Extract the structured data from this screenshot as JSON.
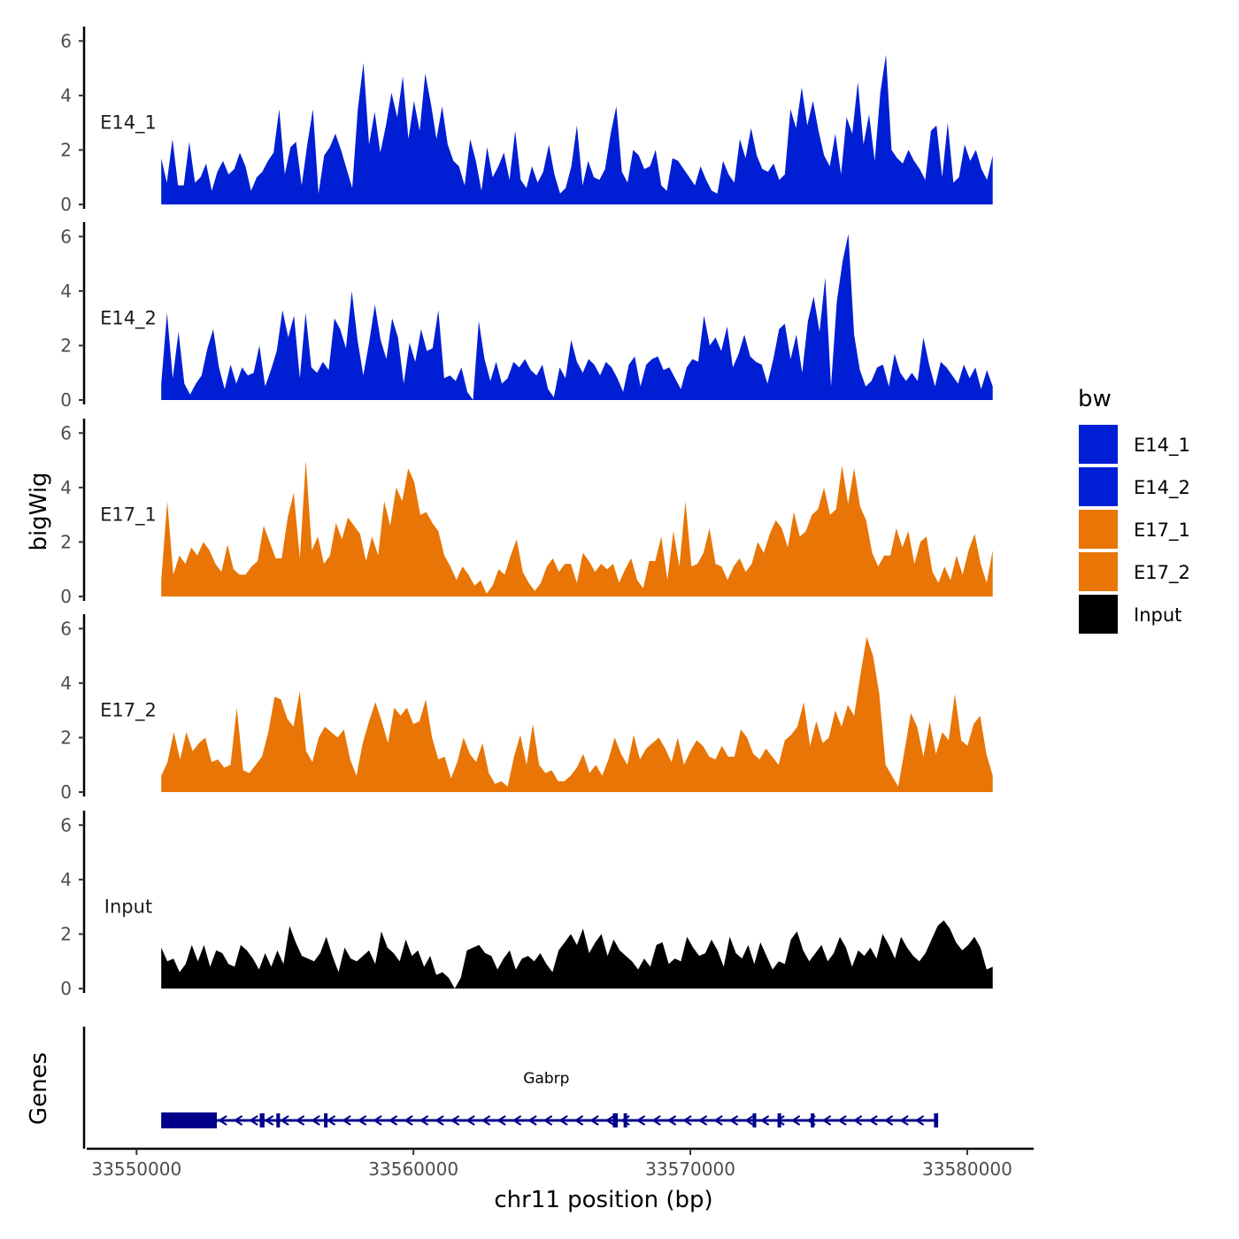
{
  "chart_data": {
    "type": "area",
    "title": "",
    "ylabel": "bigWig",
    "genes_label": "Genes",
    "xlabel": "chr11 position (bp)",
    "region_start": 33550890,
    "region_end": 33580920,
    "xlim": [
      33548200,
      33582400
    ],
    "x_ticks": [
      33550000,
      33560000,
      33570000,
      33580000
    ],
    "x_tick_labels": [
      "33550000",
      "33560000",
      "33570000",
      "33580000"
    ],
    "ylim": [
      0,
      6.4
    ],
    "y_ticks": [
      0,
      2,
      4,
      6
    ],
    "y_tick_labels": [
      "0",
      "2",
      "4",
      "6"
    ],
    "legend": {
      "title": "bw",
      "position": "right",
      "entries": [
        {
          "label": "E14_1",
          "color": "#001fd4"
        },
        {
          "label": "E14_2",
          "color": "#001fd4"
        },
        {
          "label": "E17_1",
          "color": "#e87505"
        },
        {
          "label": "E17_2",
          "color": "#e87505"
        },
        {
          "label": "Input",
          "color": "#000000"
        }
      ]
    },
    "series": [
      {
        "name": "E14_1",
        "color": "#001fd4",
        "values": [
          1.7,
          0.8,
          2.4,
          0.7,
          0.7,
          2.3,
          0.8,
          1.0,
          1.5,
          0.5,
          1.2,
          1.6,
          1.1,
          1.3,
          1.9,
          1.4,
          0.5,
          1.0,
          1.2,
          1.6,
          1.9,
          3.5,
          1.1,
          2.1,
          2.3,
          0.7,
          2.2,
          3.5,
          0.4,
          1.8,
          2.1,
          2.6,
          2.0,
          1.3,
          0.6,
          3.5,
          5.2,
          2.2,
          3.4,
          1.9,
          2.9,
          4.1,
          3.2,
          4.7,
          2.4,
          3.8,
          2.7,
          4.8,
          3.7,
          2.4,
          3.6,
          2.2,
          1.6,
          1.4,
          0.7,
          2.4,
          1.6,
          0.5,
          2.1,
          1.0,
          1.4,
          1.9,
          0.9,
          2.7,
          0.9,
          0.6,
          1.4,
          0.8,
          1.2,
          2.2,
          1.1,
          0.4,
          0.6,
          1.4,
          2.9,
          0.7,
          1.6,
          1.0,
          0.9,
          1.3,
          2.6,
          3.6,
          1.2,
          0.8,
          2.0,
          1.8,
          1.3,
          1.4,
          2.0,
          0.7,
          0.5,
          1.7,
          1.6,
          1.3,
          1.0,
          0.7,
          1.4,
          0.9,
          0.5,
          0.4,
          1.6,
          1.1,
          0.8,
          2.4,
          1.7,
          2.8,
          1.8,
          1.3,
          1.2,
          1.5,
          0.9,
          1.1,
          3.5,
          2.8,
          4.3,
          2.9,
          3.8,
          2.7,
          1.8,
          1.4,
          2.6,
          1.1,
          3.2,
          2.6,
          4.5,
          2.2,
          3.3,
          1.6,
          4.1,
          5.5,
          2.0,
          1.7,
          1.5,
          2.0,
          1.6,
          1.3,
          0.9,
          2.7,
          2.9,
          1.0,
          3.0,
          0.8,
          1.0,
          2.2,
          1.6,
          2.0,
          1.3,
          0.9,
          1.8
        ]
      },
      {
        "name": "E14_2",
        "color": "#001fd4",
        "values": [
          0.6,
          3.2,
          0.8,
          2.5,
          0.6,
          0.2,
          0.6,
          0.9,
          1.9,
          2.6,
          1.2,
          0.4,
          1.3,
          0.6,
          1.2,
          0.9,
          1.0,
          2.0,
          0.5,
          1.1,
          1.8,
          3.3,
          2.3,
          3.1,
          0.8,
          3.2,
          1.2,
          1.0,
          1.4,
          1.1,
          3.0,
          2.6,
          1.9,
          4.0,
          2.2,
          0.9,
          2.1,
          3.5,
          2.2,
          1.5,
          3.0,
          2.3,
          0.6,
          2.1,
          1.4,
          2.6,
          1.8,
          1.9,
          3.3,
          0.8,
          0.9,
          0.7,
          1.2,
          0.3,
          0.0,
          2.9,
          1.5,
          0.7,
          1.4,
          0.6,
          0.8,
          1.4,
          1.2,
          1.5,
          1.1,
          0.9,
          1.3,
          0.4,
          0.1,
          1.2,
          0.8,
          2.2,
          1.4,
          1.0,
          1.5,
          1.3,
          0.9,
          1.4,
          1.2,
          0.8,
          0.3,
          1.3,
          1.6,
          0.5,
          1.3,
          1.5,
          1.6,
          1.1,
          1.2,
          0.8,
          0.4,
          1.2,
          1.5,
          1.4,
          3.1,
          2.0,
          2.3,
          1.8,
          2.7,
          1.2,
          1.7,
          2.4,
          1.6,
          1.4,
          1.3,
          0.6,
          1.5,
          2.6,
          2.8,
          1.5,
          2.4,
          1.0,
          2.9,
          3.8,
          2.5,
          4.5,
          0.5,
          3.6,
          5.1,
          6.1,
          2.4,
          1.1,
          0.5,
          0.7,
          1.2,
          1.3,
          0.5,
          1.7,
          1.0,
          0.7,
          1.0,
          0.7,
          2.3,
          1.3,
          0.5,
          1.4,
          1.2,
          0.9,
          0.6,
          1.3,
          0.8,
          1.2,
          0.4,
          1.1,
          0.5
        ]
      },
      {
        "name": "E17_1",
        "color": "#e87505",
        "values": [
          0.6,
          3.5,
          0.8,
          1.5,
          1.2,
          1.8,
          1.5,
          2.0,
          1.7,
          1.2,
          0.9,
          1.9,
          1.0,
          0.8,
          0.8,
          1.1,
          1.3,
          2.6,
          2.0,
          1.4,
          1.4,
          2.9,
          3.8,
          1.4,
          5.0,
          1.7,
          2.2,
          1.2,
          1.5,
          2.7,
          2.1,
          2.9,
          2.6,
          2.3,
          1.3,
          2.2,
          1.5,
          3.5,
          2.6,
          4.0,
          3.5,
          4.7,
          4.2,
          3.0,
          3.1,
          2.7,
          2.4,
          1.5,
          1.1,
          0.6,
          1.1,
          0.8,
          0.4,
          0.6,
          0.1,
          0.4,
          1.0,
          0.8,
          1.5,
          2.1,
          0.9,
          0.5,
          0.2,
          0.5,
          1.1,
          1.4,
          0.9,
          1.2,
          1.2,
          0.5,
          1.6,
          1.3,
          0.9,
          1.2,
          1.0,
          1.2,
          0.5,
          1.0,
          1.4,
          0.6,
          0.3,
          1.3,
          1.3,
          2.2,
          0.6,
          2.4,
          1.1,
          3.5,
          1.1,
          1.2,
          1.6,
          2.5,
          1.2,
          1.1,
          0.6,
          1.1,
          1.4,
          0.9,
          1.2,
          2.0,
          1.6,
          2.3,
          2.8,
          2.5,
          1.8,
          3.1,
          2.2,
          2.4,
          3.0,
          3.2,
          4.0,
          3.0,
          3.2,
          4.8,
          3.4,
          4.7,
          3.3,
          2.8,
          1.6,
          1.1,
          1.5,
          1.5,
          2.5,
          1.8,
          2.4,
          1.2,
          2.0,
          2.2,
          0.9,
          0.5,
          1.1,
          0.6,
          1.5,
          0.8,
          1.7,
          2.3,
          1.2,
          0.5,
          1.7
        ]
      },
      {
        "name": "E17_2",
        "color": "#e87505",
        "values": [
          0.6,
          1.1,
          2.2,
          1.2,
          2.2,
          1.5,
          1.8,
          2.0,
          1.1,
          1.2,
          0.9,
          1.0,
          3.1,
          0.8,
          0.7,
          1.0,
          1.3,
          2.2,
          3.5,
          3.4,
          2.7,
          2.4,
          3.7,
          1.5,
          1.1,
          2.0,
          2.4,
          2.2,
          2.0,
          2.3,
          1.2,
          0.6,
          1.8,
          2.6,
          3.3,
          2.6,
          1.8,
          3.1,
          2.8,
          3.1,
          2.5,
          2.6,
          3.4,
          2.0,
          1.2,
          1.3,
          0.5,
          1.1,
          2.0,
          1.4,
          1.1,
          1.8,
          0.7,
          0.3,
          0.4,
          0.2,
          1.3,
          2.1,
          1.0,
          2.5,
          1.0,
          0.7,
          0.8,
          0.4,
          0.4,
          0.6,
          0.9,
          1.4,
          0.7,
          1.0,
          0.6,
          1.2,
          2.0,
          1.4,
          1.0,
          2.1,
          1.2,
          1.6,
          1.8,
          2.0,
          1.6,
          1.1,
          2.0,
          1.0,
          1.5,
          1.9,
          1.7,
          1.3,
          1.2,
          1.7,
          1.3,
          1.3,
          2.3,
          2.0,
          1.4,
          1.2,
          1.6,
          1.3,
          1.0,
          1.9,
          2.1,
          2.4,
          3.3,
          1.7,
          2.6,
          1.8,
          2.0,
          3.0,
          2.4,
          3.2,
          2.8,
          4.3,
          5.7,
          5.0,
          3.6,
          1.0,
          0.6,
          0.2,
          1.5,
          2.9,
          2.4,
          1.3,
          2.6,
          1.4,
          2.2,
          1.9,
          3.6,
          1.9,
          1.7,
          2.5,
          2.8,
          1.4,
          0.6
        ]
      },
      {
        "name": "Input",
        "color": "#000000",
        "values": [
          1.5,
          1.0,
          1.1,
          0.6,
          0.9,
          1.6,
          1.0,
          1.6,
          0.8,
          1.4,
          1.3,
          0.9,
          0.8,
          1.6,
          1.4,
          1.1,
          0.7,
          1.3,
          0.8,
          1.4,
          0.9,
          2.3,
          1.7,
          1.2,
          1.1,
          1.0,
          1.3,
          1.9,
          1.2,
          0.6,
          1.5,
          1.1,
          1.0,
          1.2,
          1.4,
          0.9,
          2.1,
          1.5,
          1.3,
          1.0,
          1.8,
          1.2,
          1.4,
          0.8,
          1.2,
          0.5,
          0.6,
          0.4,
          0.0,
          0.4,
          1.4,
          1.5,
          1.6,
          1.3,
          1.2,
          0.7,
          1.1,
          1.4,
          0.7,
          1.1,
          1.2,
          1.0,
          1.3,
          0.9,
          0.6,
          1.4,
          1.7,
          2.0,
          1.6,
          2.2,
          1.3,
          1.7,
          2.0,
          1.2,
          1.8,
          1.4,
          1.2,
          1.0,
          0.7,
          1.1,
          0.8,
          1.6,
          1.7,
          0.9,
          1.1,
          1.0,
          1.9,
          1.5,
          1.2,
          1.3,
          1.8,
          1.4,
          0.8,
          1.9,
          1.3,
          1.1,
          1.6,
          0.9,
          1.7,
          1.2,
          0.7,
          1.0,
          0.9,
          1.8,
          2.1,
          1.4,
          1.0,
          1.3,
          1.6,
          1.0,
          1.3,
          1.9,
          1.5,
          0.8,
          1.4,
          1.2,
          1.5,
          1.1,
          2.0,
          1.6,
          1.1,
          1.9,
          1.5,
          1.2,
          1.0,
          1.3,
          1.8,
          2.3,
          2.5,
          2.2,
          1.7,
          1.4,
          1.6,
          1.9,
          1.5,
          0.7,
          0.8
        ]
      }
    ],
    "genes": [
      {
        "name": "Gabrp",
        "start": 33550890,
        "end": 33578950,
        "strand": "-",
        "color": "#00008b",
        "exons": [
          [
            33550890,
            33552900
          ],
          [
            33554450,
            33554620
          ],
          [
            33555050,
            33555180
          ],
          [
            33556770,
            33556860
          ],
          [
            33567200,
            33567380
          ],
          [
            33567590,
            33567640
          ],
          [
            33572250,
            33572380
          ],
          [
            33573150,
            33573280
          ],
          [
            33574350,
            33574460
          ],
          [
            33578800,
            33578950
          ]
        ]
      }
    ]
  }
}
